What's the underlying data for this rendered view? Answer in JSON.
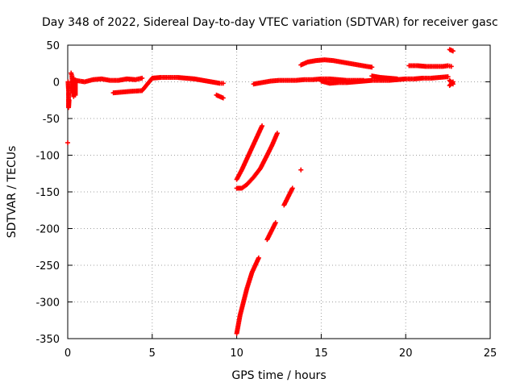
{
  "chart_data": {
    "type": "scatter",
    "title": "Day 348 of 2022, Sidereal Day-to-day VTEC variation (SDTVAR) for receiver gasc",
    "xlabel": "GPS time / hours",
    "ylabel": "SDTVAR / TECUs",
    "xlim": [
      0,
      25
    ],
    "ylim": [
      -350,
      50
    ],
    "xticks": [
      0,
      5,
      10,
      15,
      20,
      25
    ],
    "yticks": [
      50,
      0,
      -50,
      -100,
      -150,
      -200,
      -250,
      -300,
      -350
    ],
    "xtick_labels": [
      "0",
      "5",
      "10",
      "15",
      "20",
      "25"
    ],
    "ytick_labels": [
      "50",
      "0",
      "-50",
      "-100",
      "-150",
      "-200",
      "-250",
      "-300",
      "-350"
    ],
    "grid": true,
    "marker": "+",
    "color": "#ff0000",
    "series": [
      {
        "points": [
          [
            0.0,
            -83
          ],
          [
            0.02,
            0
          ],
          [
            0.05,
            -12
          ],
          [
            0.05,
            -35
          ],
          [
            0.08,
            -25
          ],
          [
            0.2,
            12
          ],
          [
            0.25,
            8
          ],
          [
            0.3,
            -15
          ],
          [
            0.35,
            5
          ],
          [
            0.35,
            -20
          ],
          [
            0.4,
            -10
          ],
          [
            0.45,
            -18
          ],
          [
            0.45,
            2
          ],
          [
            1.0,
            0
          ],
          [
            1.5,
            3
          ],
          [
            2.0,
            4
          ],
          [
            2.5,
            2
          ],
          [
            3.0,
            2
          ],
          [
            3.5,
            4
          ],
          [
            4.0,
            3
          ],
          [
            4.4,
            5
          ],
          [
            2.7,
            -15
          ],
          [
            3.2,
            -14
          ],
          [
            3.7,
            -13
          ],
          [
            4.4,
            -12
          ],
          [
            5.0,
            5
          ],
          [
            5.5,
            6
          ],
          [
            6.0,
            6
          ],
          [
            6.5,
            6
          ],
          [
            7.0,
            5
          ],
          [
            7.5,
            4
          ],
          [
            8.0,
            2
          ],
          [
            8.5,
            0
          ],
          [
            9.0,
            -2
          ],
          [
            9.2,
            -2
          ],
          [
            8.8,
            -18
          ],
          [
            9.2,
            -22
          ],
          [
            11.0,
            -3
          ],
          [
            11.5,
            -1
          ],
          [
            12.0,
            1
          ],
          [
            12.5,
            2
          ],
          [
            13.0,
            2
          ],
          [
            13.5,
            2
          ],
          [
            14.0,
            3
          ],
          [
            14.5,
            3
          ],
          [
            15.0,
            4
          ],
          [
            15.5,
            4
          ],
          [
            16.0,
            3
          ],
          [
            16.5,
            2
          ],
          [
            17.0,
            2
          ],
          [
            17.5,
            2
          ],
          [
            15.0,
            1
          ],
          [
            15.5,
            -2
          ],
          [
            16.0,
            -1
          ],
          [
            16.5,
            -1
          ],
          [
            17.0,
            0
          ],
          [
            17.5,
            1
          ],
          [
            18.0,
            2
          ],
          [
            18.5,
            2
          ],
          [
            19.0,
            2
          ],
          [
            19.5,
            3
          ],
          [
            20.0,
            4
          ],
          [
            20.5,
            4
          ],
          [
            21.0,
            5
          ],
          [
            21.5,
            5
          ],
          [
            22.0,
            6
          ],
          [
            22.5,
            7
          ],
          [
            18.0,
            8
          ],
          [
            18.5,
            6
          ],
          [
            19.0,
            5
          ],
          [
            19.5,
            4
          ],
          [
            13.8,
            23
          ],
          [
            14.2,
            27
          ],
          [
            14.7,
            29
          ],
          [
            15.2,
            30
          ],
          [
            15.7,
            29
          ],
          [
            16.2,
            27
          ],
          [
            16.7,
            25
          ],
          [
            17.2,
            23
          ],
          [
            17.7,
            21
          ],
          [
            18.0,
            20
          ],
          [
            20.2,
            22
          ],
          [
            20.7,
            22
          ],
          [
            21.2,
            21
          ],
          [
            21.7,
            21
          ],
          [
            22.2,
            21
          ],
          [
            22.5,
            22
          ],
          [
            22.7,
            21
          ],
          [
            22.6,
            44
          ],
          [
            22.8,
            42
          ],
          [
            22.6,
            2
          ],
          [
            22.8,
            -3
          ],
          [
            22.6,
            -5
          ],
          [
            22.8,
            0
          ],
          [
            10.0,
            -133
          ],
          [
            10.3,
            -120
          ],
          [
            10.6,
            -105
          ],
          [
            10.9,
            -90
          ],
          [
            11.2,
            -75
          ],
          [
            11.5,
            -60
          ],
          [
            10.0,
            -145
          ],
          [
            10.3,
            -145
          ],
          [
            10.6,
            -140
          ],
          [
            11.0,
            -130
          ],
          [
            11.4,
            -118
          ],
          [
            11.8,
            -100
          ],
          [
            12.1,
            -86
          ],
          [
            12.4,
            -70
          ],
          [
            10.0,
            -343
          ],
          [
            10.2,
            -318
          ],
          [
            10.4,
            -300
          ],
          [
            10.6,
            -282
          ],
          [
            10.9,
            -260
          ],
          [
            11.3,
            -240
          ],
          [
            11.8,
            -215
          ],
          [
            12.3,
            -192
          ],
          [
            12.8,
            -168
          ],
          [
            13.3,
            -145
          ],
          [
            13.8,
            -120
          ]
        ]
      }
    ]
  }
}
